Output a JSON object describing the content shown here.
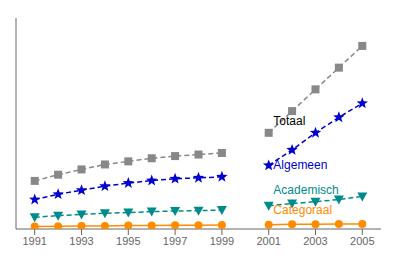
{
  "chart_data": {
    "type": "line",
    "x": [
      1991,
      1992,
      1993,
      1994,
      1995,
      1996,
      1997,
      1998,
      1999,
      2000,
      2001,
      2002,
      2003,
      2004,
      2005
    ],
    "series": [
      {
        "name": "Totaal",
        "color": "#888888",
        "marker": "square",
        "line_style": "dashed",
        "values": [
          155,
          175,
          192,
          208,
          218,
          228,
          235,
          240,
          245,
          null,
          310,
          380,
          450,
          520,
          590
        ]
      },
      {
        "name": "Algemeen",
        "color": "#0000cc",
        "marker": "star",
        "line_style": "dashed",
        "values": [
          95,
          112,
          125,
          138,
          148,
          156,
          162,
          165,
          168,
          null,
          205,
          255,
          310,
          360,
          405
        ]
      },
      {
        "name": "Academisch",
        "color": "#008b8b",
        "marker": "triangle-down",
        "line_style": "dashed",
        "values": [
          38,
          43,
          47,
          51,
          53,
          56,
          58,
          59,
          61,
          null,
          75,
          82,
          88,
          95,
          105
        ]
      },
      {
        "name": "Categoraal",
        "color": "#ff8c00",
        "marker": "circle",
        "line_style": "solid",
        "values": [
          8,
          9,
          10,
          10,
          11,
          11,
          12,
          12,
          13,
          null,
          14,
          15,
          15,
          16,
          16
        ]
      }
    ],
    "xlim": [
      1990.2,
      2005.8
    ],
    "xticks": [
      1991,
      1993,
      1995,
      1997,
      1999,
      2001,
      2003,
      2005
    ],
    "ylim": [
      0,
      680
    ],
    "tick_labels": "x",
    "grid": false,
    "annotations": [
      {
        "text": "Totaal",
        "x": 2001.2,
        "y": 330,
        "color": "#000000"
      },
      {
        "text": "Algemeen",
        "x": 2001.2,
        "y": 188,
        "color": "#0000cc"
      },
      {
        "text": "Academisch",
        "x": 2001.2,
        "y": 107,
        "color": "#008b8b"
      },
      {
        "text": "Categoraal",
        "x": 2001.2,
        "y": 42,
        "color": "#ff8c00"
      }
    ]
  }
}
